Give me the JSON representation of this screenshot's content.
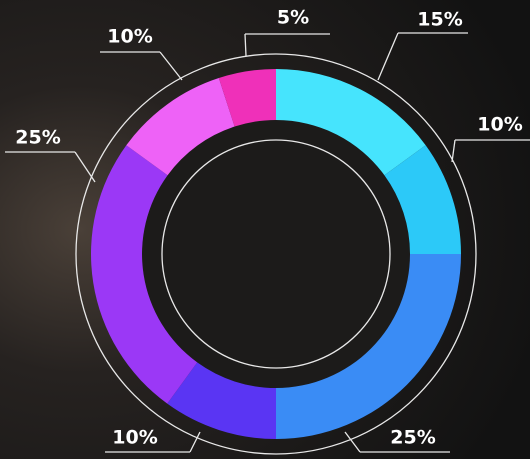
{
  "chart_data": {
    "type": "pie",
    "values": [
      15,
      10,
      25,
      10,
      25,
      10,
      5
    ],
    "value_labels": [
      "15%",
      "10%",
      "25%",
      "10%",
      "25%",
      "10%",
      "5%"
    ],
    "colors": [
      "#46e4fd",
      "#2cc9f8",
      "#3a8cf5",
      "#5a35f3",
      "#9b38f6",
      "#ee62f7",
      "#ef30b9"
    ]
  }
}
